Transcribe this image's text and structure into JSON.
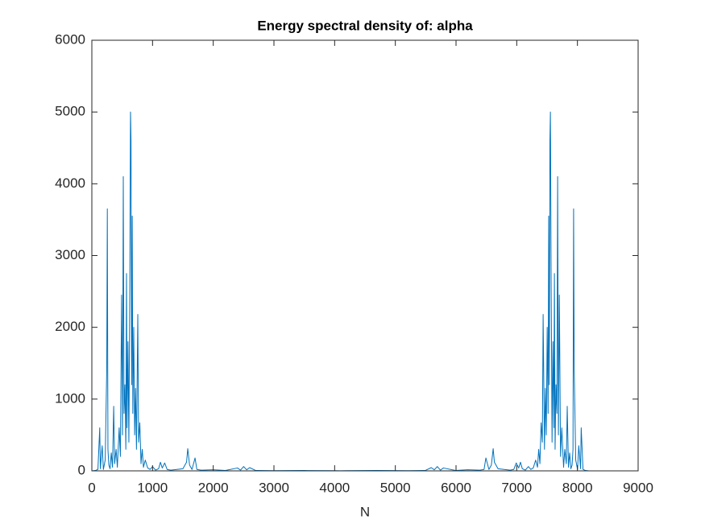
{
  "chart_data": {
    "type": "line",
    "title": "Energy spectral density of: alpha",
    "x_label": "N",
    "color": "#0072bd",
    "x": [
      0,
      60,
      100,
      130,
      140,
      170,
      190,
      220,
      245,
      255,
      265,
      280,
      300,
      320,
      340,
      360,
      375,
      400,
      420,
      450,
      470,
      490,
      505,
      518,
      530,
      545,
      560,
      571,
      580,
      595,
      610,
      625,
      637,
      645,
      655,
      665,
      675,
      690,
      705,
      720,
      735,
      757,
      770,
      790,
      810,
      830,
      850,
      880,
      920,
      960,
      1000,
      1050,
      1100,
      1130,
      1160,
      1200,
      1240,
      1300,
      1400,
      1500,
      1560,
      1580,
      1610,
      1650,
      1700,
      1730,
      1800,
      2000,
      2200,
      2400,
      2450,
      2500,
      2550,
      2600,
      2700,
      3000,
      3500,
      4000,
      4096,
      4192,
      4692,
      5192,
      5492,
      5592,
      5642,
      5692,
      5742,
      5792,
      5992,
      6192,
      6392,
      6462,
      6492,
      6542,
      6582,
      6612,
      6632,
      6692,
      6792,
      6892,
      6952,
      6992,
      7032,
      7062,
      7092,
      7142,
      7192,
      7232,
      7272,
      7312,
      7342,
      7362,
      7382,
      7402,
      7422,
      7435,
      7457,
      7472,
      7487,
      7502,
      7517,
      7527,
      7537,
      7547,
      7555,
      7567,
      7582,
      7597,
      7612,
      7621,
      7632,
      7647,
      7662,
      7674,
      7687,
      7702,
      7722,
      7742,
      7772,
      7792,
      7817,
      7832,
      7852,
      7872,
      7892,
      7912,
      7927,
      7937,
      7947,
      7972,
      8002,
      8022,
      8052,
      8062,
      8092,
      8132,
      8192
    ],
    "values": [
      0,
      5,
      20,
      600,
      30,
      350,
      20,
      150,
      1400,
      3650,
      300,
      80,
      30,
      250,
      50,
      900,
      100,
      300,
      50,
      600,
      200,
      2450,
      500,
      4100,
      800,
      1200,
      300,
      2750,
      600,
      1800,
      400,
      2600,
      5000,
      4600,
      1200,
      3550,
      800,
      2000,
      500,
      1150,
      300,
      2180,
      400,
      670,
      100,
      300,
      50,
      150,
      40,
      20,
      60,
      10,
      30,
      120,
      40,
      110,
      20,
      10,
      20,
      30,
      120,
      310,
      80,
      20,
      180,
      20,
      10,
      15,
      5,
      40,
      10,
      60,
      15,
      45,
      5,
      3,
      5,
      3,
      2,
      3,
      5,
      3,
      5,
      45,
      15,
      60,
      10,
      40,
      5,
      15,
      10,
      20,
      180,
      20,
      80,
      310,
      120,
      30,
      20,
      10,
      20,
      110,
      40,
      120,
      30,
      10,
      60,
      20,
      40,
      150,
      50,
      300,
      100,
      670,
      400,
      2180,
      300,
      1150,
      500,
      2000,
      800,
      3550,
      1200,
      4600,
      5000,
      2600,
      400,
      1800,
      600,
      2750,
      300,
      1200,
      800,
      4100,
      500,
      2450,
      200,
      600,
      50,
      300,
      100,
      900,
      50,
      250,
      30,
      80,
      300,
      3650,
      1400,
      150,
      20,
      350,
      30,
      600,
      20,
      5,
      0
    ],
    "xlim": [
      0,
      9000
    ],
    "xticks": [
      0,
      1000,
      2000,
      3000,
      4000,
      5000,
      6000,
      7000,
      8000,
      9000
    ],
    "ylim": [
      0,
      6000
    ],
    "yticks": [
      0,
      1000,
      2000,
      3000,
      4000,
      5000,
      6000
    ]
  }
}
